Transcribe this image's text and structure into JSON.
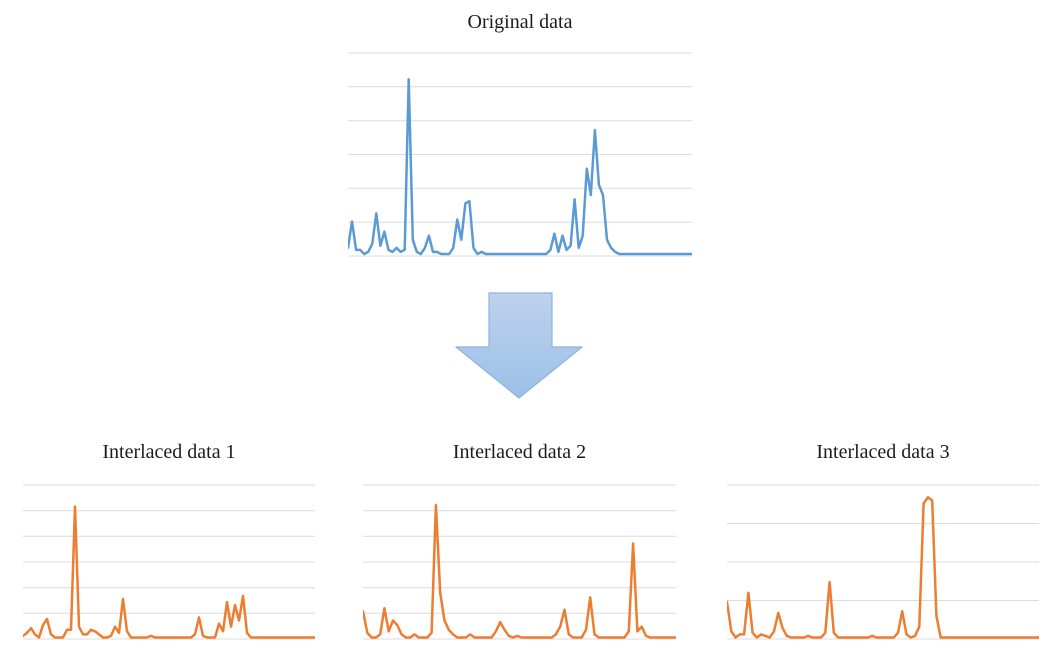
{
  "page": {
    "background": "#ffffff",
    "title_color": "#1c1c1c"
  },
  "arrow": {
    "direction": "down",
    "fill_top": "#bdd2ee",
    "fill_bottom": "#9cc0e7",
    "border": "#8fb2dc"
  },
  "chart_data": [
    {
      "id": "original",
      "type": "line",
      "title": "Original data",
      "series_color": "#5B9BD5",
      "gridline_color": "#dcdcdc",
      "gridlines": 7,
      "legend": "none",
      "x_axis_labels": "none",
      "y_axis_labels": "none",
      "x": "sample index 0-85",
      "ylim": [
        0,
        100
      ],
      "values": [
        4,
        17,
        3,
        3,
        1,
        2,
        6,
        21,
        5,
        12,
        3,
        2,
        4,
        2,
        3,
        87,
        8,
        2,
        1,
        4,
        10,
        2,
        2,
        1,
        1,
        1,
        4,
        18,
        8,
        26,
        27,
        4,
        1,
        2,
        1,
        1,
        1,
        1,
        1,
        1,
        1,
        1,
        1,
        1,
        1,
        1,
        1,
        1,
        1,
        1,
        3,
        11,
        2,
        10,
        3,
        5,
        28,
        4,
        10,
        43,
        30,
        62,
        35,
        30,
        8,
        4,
        2,
        1,
        1,
        1,
        1,
        1,
        1,
        1,
        1,
        1,
        1,
        1,
        1,
        1,
        1,
        1,
        1,
        1,
        1,
        1
      ]
    },
    {
      "id": "interlaced-1",
      "type": "line",
      "title": "Interlaced data 1",
      "series_color": "#ED7D31",
      "gridline_color": "#dcdcdc",
      "gridlines": 7,
      "legend": "none",
      "x_axis_labels": "none",
      "y_axis_labels": "none",
      "x": "sample index 0-73",
      "ylim": [
        0,
        100
      ],
      "values": [
        2,
        4,
        7,
        3,
        1,
        9,
        13,
        3,
        1,
        1,
        1,
        6,
        6,
        86,
        8,
        3,
        3,
        6,
        5,
        3,
        1,
        1,
        2,
        8,
        4,
        26,
        5,
        1,
        1,
        1,
        1,
        1,
        2,
        1,
        1,
        1,
        1,
        1,
        1,
        1,
        1,
        1,
        1,
        3,
        14,
        2,
        1,
        1,
        1,
        10,
        5,
        24,
        8,
        22,
        12,
        28,
        4,
        1,
        1,
        1,
        1,
        1,
        1,
        1,
        1,
        1,
        1,
        1,
        1,
        1,
        1,
        1,
        1,
        1
      ]
    },
    {
      "id": "interlaced-2",
      "type": "line",
      "title": "Interlaced data 2",
      "series_color": "#ED7D31",
      "gridline_color": "#dcdcdc",
      "gridlines": 7,
      "legend": "none",
      "x_axis_labels": "none",
      "y_axis_labels": "none",
      "x": "sample index 0-73",
      "ylim": [
        0,
        100
      ],
      "values": [
        18,
        4,
        1,
        1,
        3,
        20,
        5,
        12,
        9,
        3,
        1,
        1,
        3,
        1,
        1,
        1,
        4,
        87,
        30,
        12,
        6,
        3,
        1,
        1,
        1,
        3,
        1,
        1,
        1,
        1,
        1,
        5,
        11,
        6,
        2,
        1,
        2,
        1,
        1,
        1,
        1,
        1,
        1,
        1,
        1,
        3,
        8,
        19,
        3,
        1,
        1,
        1,
        6,
        27,
        3,
        1,
        1,
        1,
        1,
        1,
        1,
        1,
        5,
        62,
        5,
        8,
        2,
        1,
        1,
        1,
        1,
        1,
        1,
        1
      ]
    },
    {
      "id": "interlaced-3",
      "type": "line",
      "title": "Interlaced data 3",
      "series_color": "#ED7D31",
      "gridline_color": "#dcdcdc",
      "gridlines": 5,
      "legend": "none",
      "x_axis_labels": "none",
      "y_axis_labels": "none",
      "x": "sample index 0-73",
      "ylim": [
        0,
        100
      ],
      "values": [
        24,
        5,
        1,
        3,
        3,
        30,
        4,
        1,
        3,
        2,
        1,
        5,
        17,
        7,
        2,
        1,
        1,
        1,
        1,
        2,
        1,
        1,
        1,
        4,
        37,
        4,
        1,
        1,
        1,
        1,
        1,
        1,
        1,
        1,
        2,
        1,
        1,
        1,
        1,
        1,
        4,
        18,
        3,
        1,
        2,
        8,
        88,
        92,
        90,
        15,
        1,
        1,
        1,
        1,
        1,
        1,
        1,
        1,
        1,
        1,
        1,
        1,
        1,
        1,
        1,
        1,
        1,
        1,
        1,
        1,
        1,
        1,
        1,
        1
      ]
    }
  ]
}
